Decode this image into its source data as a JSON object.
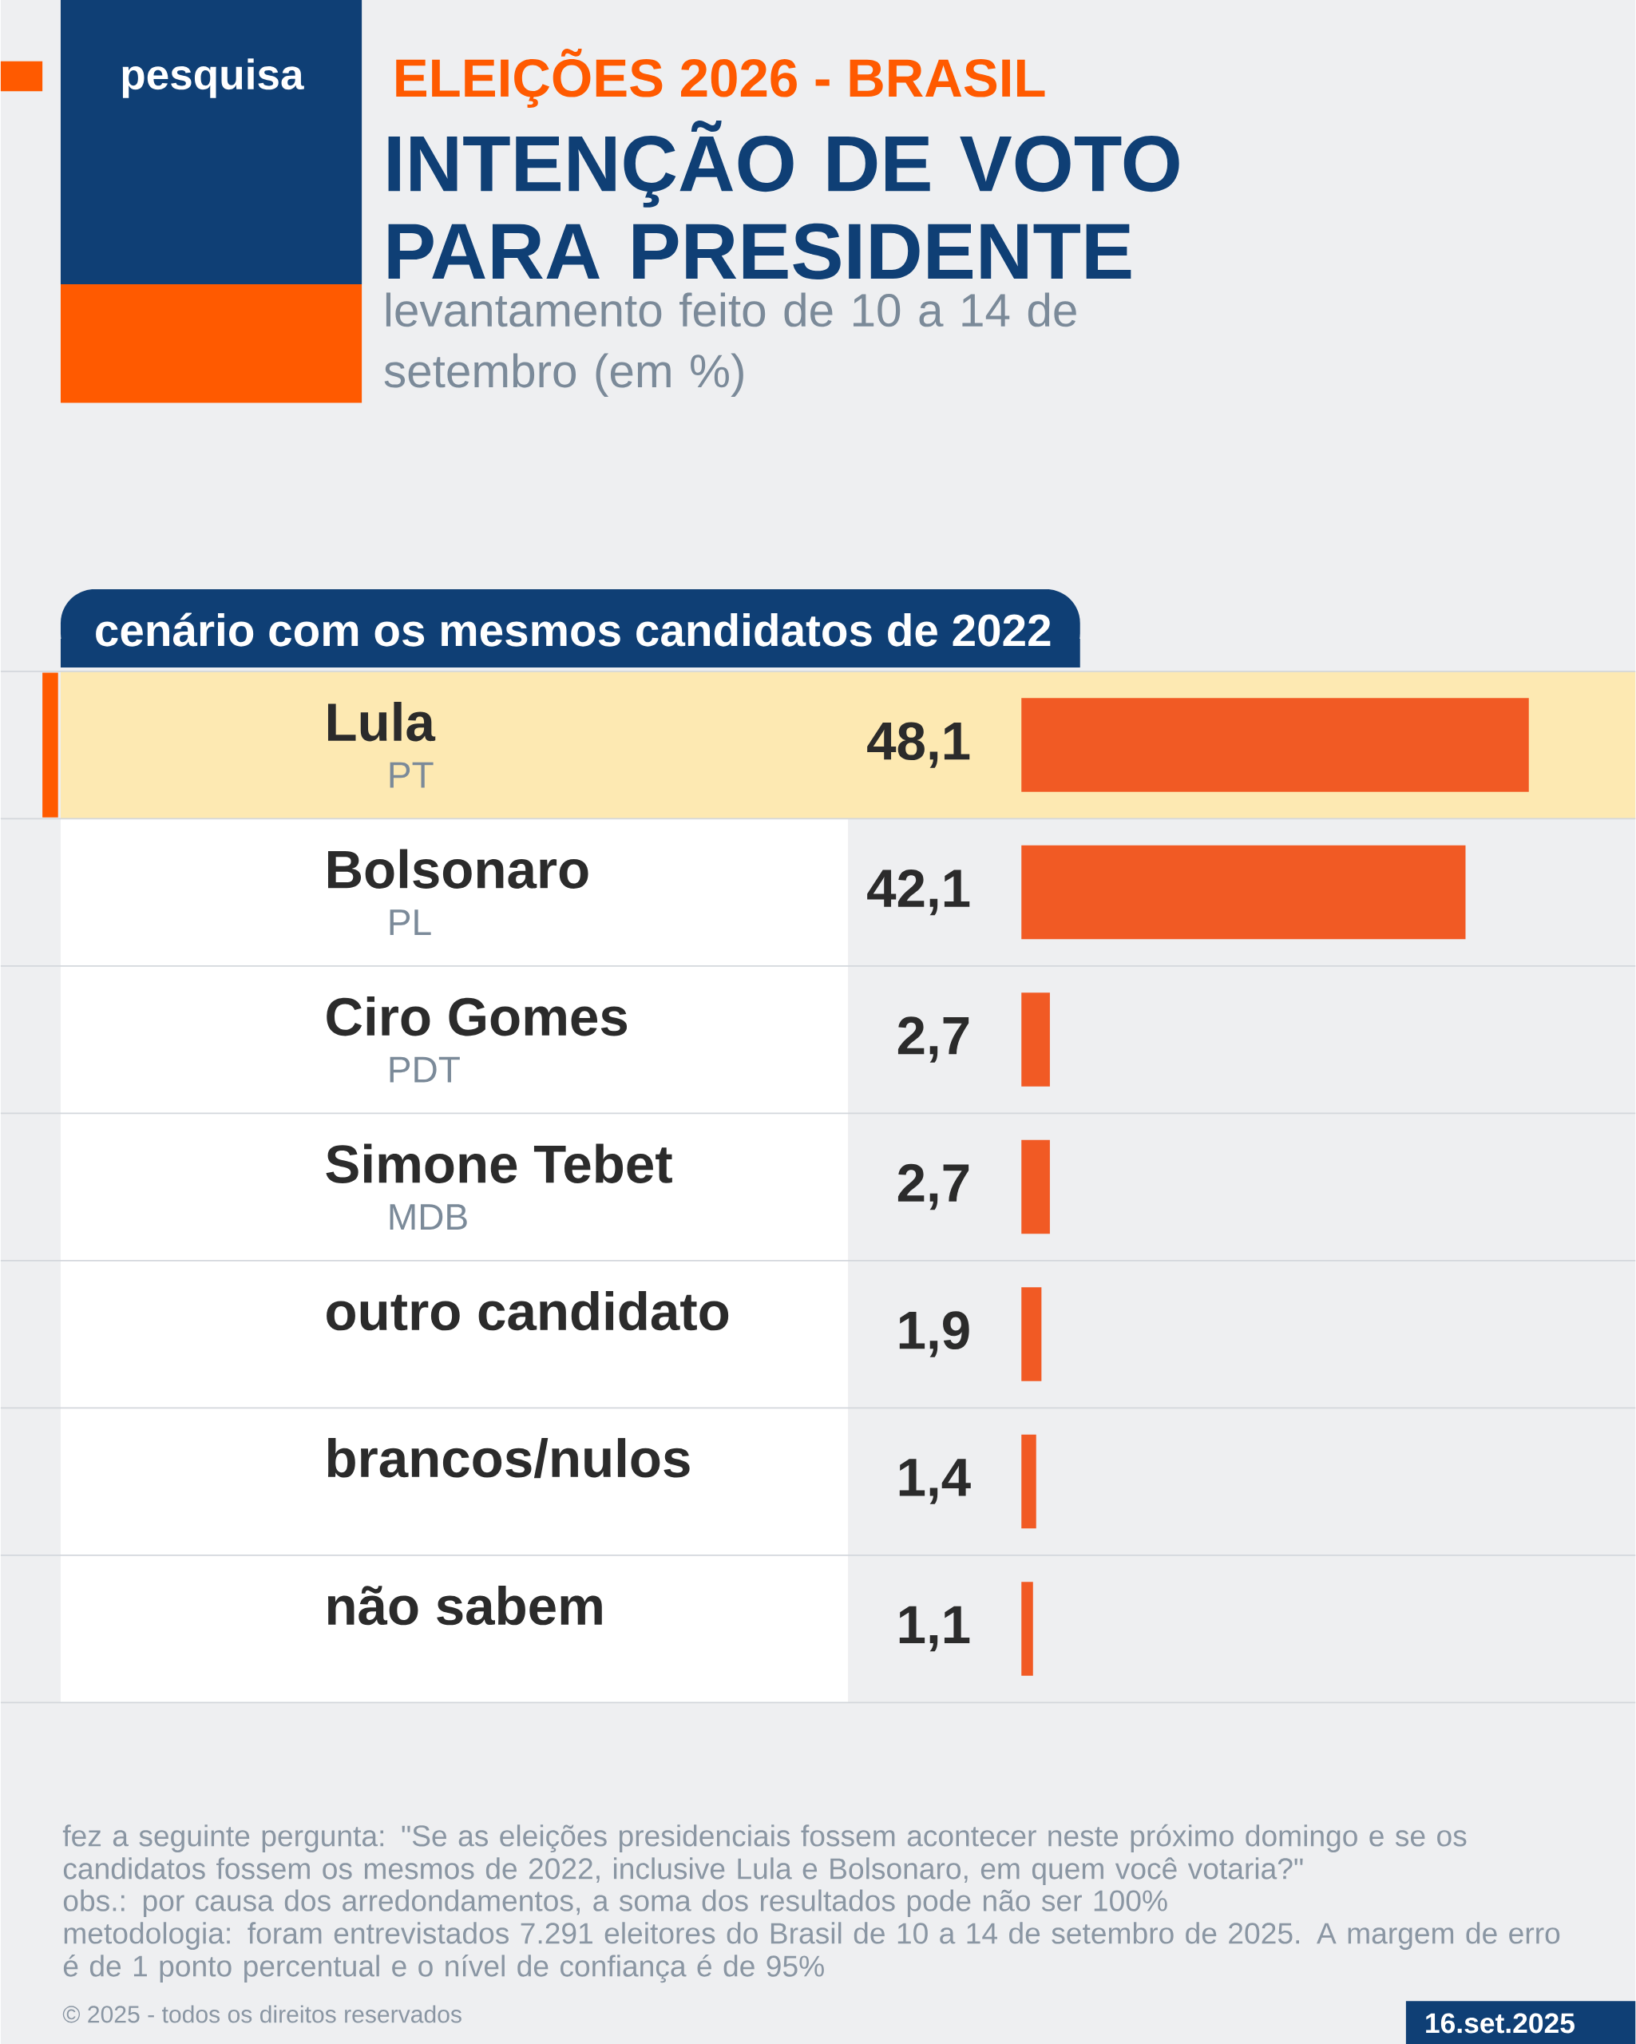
{
  "chart_data": {
    "type": "bar",
    "orientation": "horizontal",
    "title": "INTENÇÃO DE VOTO PARA PRESIDENTE",
    "subtitle": "levantamento feito de 10 a 14 de setembro (em %)",
    "categories": [
      "Lula",
      "Bolsonaro",
      "Ciro Gomes",
      "Simone Tebet",
      "outro candidato",
      "brancos/nulos",
      "não sabem"
    ],
    "values": [
      48.1,
      42.1,
      2.7,
      2.7,
      1.9,
      1.4,
      1.1
    ],
    "value_labels": [
      "48,1",
      "42,1",
      "2,7",
      "2,7",
      "1,9",
      "1,4",
      "1,1"
    ],
    "color": "#f15a24",
    "annotations": [
      "ELEIÇÕES 2026 - BRASIL",
      "pesquisa",
      "cenário com os mesmos candidatos de 2022",
      "fez a seguinte pergunta: \"Se as eleições presidenciais fossem acontecer neste próximo domingo e se os candidatos fossem os mesmos de 2022, inclusive Lula e Bolsonaro, em quem você votaria?\"",
      "obs.: por causa dos arredondamentos, a soma dos resultados pode não ser 100%",
      "metodologia: foram entrevistados 7.291 eleitores do Brasil de 10 a 14 de setembro de 2025. A margem de erro é de 1 ponto percentual e o nível de confiança é de 95%",
      "© 2025 - todos os direitos reservados",
      "16.set.2025",
      "PT",
      "PL",
      "PDT",
      "MDB"
    ]
  }
}
